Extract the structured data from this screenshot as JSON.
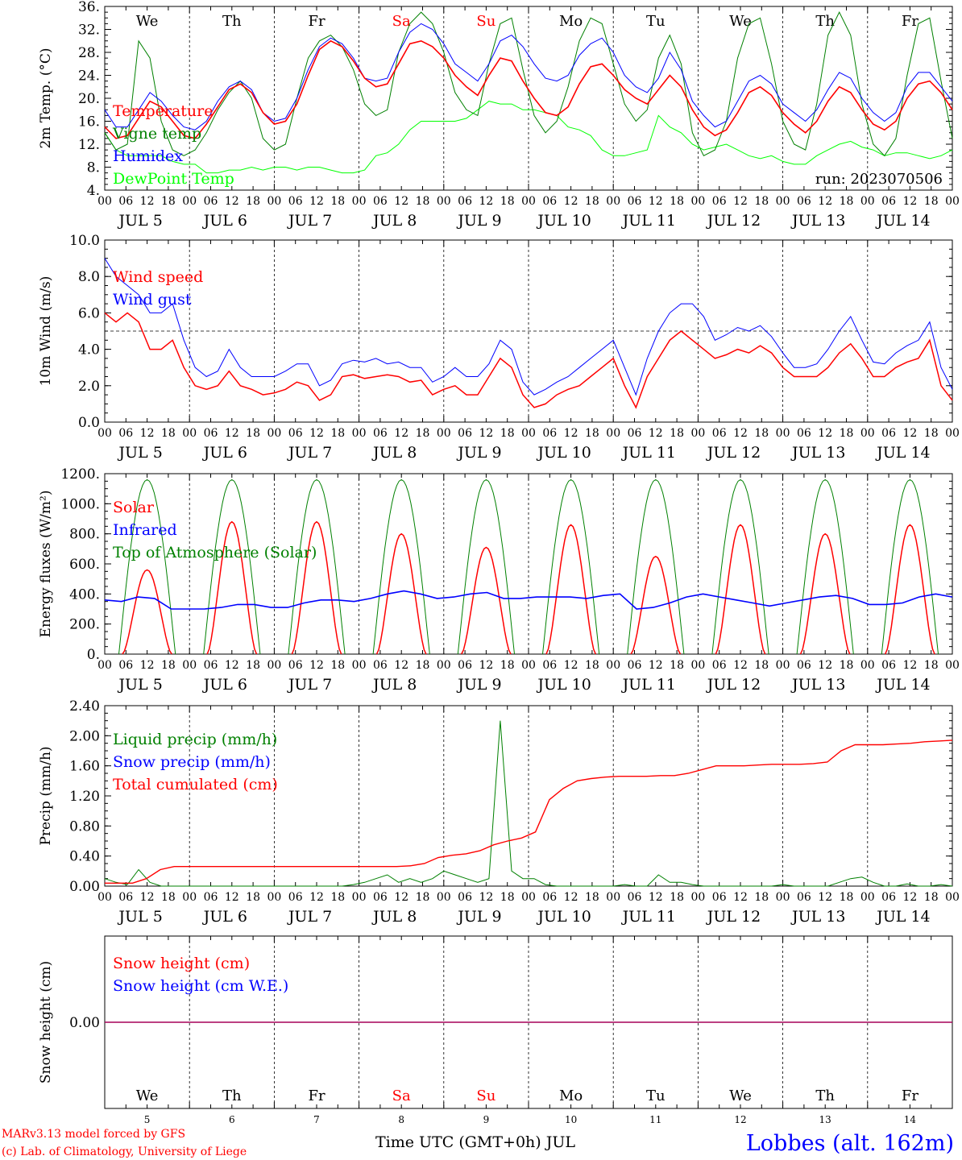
{
  "chart_data": [
    {
      "type": "line",
      "ylabel": "2m Temp. (°C)",
      "ylim": [
        4,
        36
      ],
      "yticks": [
        "4.",
        "8.",
        "12.",
        "16.",
        "20.",
        "24.",
        "28.",
        "32.",
        "36."
      ],
      "legend_placement": "left",
      "run_label": "run: 2023070506",
      "series": [
        {
          "name": "Temperature",
          "color": "#ff0000",
          "values": [
            15,
            13,
            13.5,
            16.5,
            19.5,
            18.5,
            16,
            13.5,
            13,
            15.5,
            18.5,
            21.5,
            22.5,
            21,
            17.5,
            15.5,
            16,
            19,
            24,
            28.5,
            30,
            29,
            26.5,
            23.5,
            22,
            22.5,
            26,
            29.5,
            30,
            29,
            27,
            24,
            22,
            20.5,
            24,
            27,
            26.5,
            23,
            20,
            17.5,
            17,
            18.5,
            22.5,
            25.5,
            26,
            24,
            21.5,
            20,
            19,
            21.5,
            24,
            22,
            18,
            15,
            13.5,
            14.5,
            17.5,
            21,
            22,
            20.5,
            17.5,
            15.5,
            14,
            16,
            19.5,
            22,
            21,
            18,
            15.5,
            14.5,
            16,
            20,
            22.5,
            23,
            21,
            18
          ]
        },
        {
          "name": "Vigne temp",
          "color": "#008000",
          "values": [
            14,
            11,
            12,
            30,
            27,
            16,
            11,
            10,
            11,
            14,
            18,
            21,
            23,
            20,
            13,
            11,
            12,
            20,
            27,
            30,
            31,
            29,
            25,
            19,
            17,
            18,
            28,
            33,
            35,
            33,
            28,
            21,
            18,
            17,
            26,
            33,
            34,
            25,
            17,
            14,
            16,
            22,
            30,
            34,
            33,
            26,
            19,
            16,
            18,
            27,
            31,
            26,
            14,
            10,
            11,
            16,
            27,
            33,
            34,
            26,
            16,
            12,
            11,
            19,
            31,
            35,
            31,
            19,
            12,
            10,
            13,
            24,
            33,
            34,
            23,
            13
          ]
        },
        {
          "name": "Humidex",
          "color": "#0000ff",
          "values": [
            18,
            15,
            15,
            18,
            21,
            19.5,
            17,
            15,
            14.5,
            16,
            19.5,
            22,
            23,
            21.5,
            17.5,
            16,
            16.5,
            20,
            25,
            29,
            30.5,
            29.5,
            27,
            23.5,
            23,
            23.5,
            28,
            31.5,
            33,
            32,
            29.5,
            26,
            24.5,
            23,
            26,
            30,
            31,
            29,
            26,
            23.5,
            23,
            24,
            27.5,
            29.5,
            30.5,
            28,
            24,
            22,
            21,
            23.5,
            28,
            25,
            19.5,
            17,
            15,
            16,
            19.5,
            23,
            24,
            22.5,
            19,
            17.5,
            16,
            18,
            21.5,
            24.5,
            23.5,
            20,
            17.5,
            16,
            17.5,
            22,
            24.5,
            24.5,
            22,
            19.5
          ]
        },
        {
          "name": "DewPoint Temp",
          "color": "#00ff00",
          "values": [
            14,
            11,
            10,
            10,
            10,
            10,
            9,
            8.5,
            8.5,
            7,
            7,
            7.5,
            7.5,
            8,
            7.5,
            8,
            8,
            7.5,
            8,
            8,
            7.5,
            7,
            7,
            7.5,
            10,
            10.5,
            12,
            14.5,
            16,
            16,
            16,
            16,
            16.5,
            18,
            19.5,
            19,
            19,
            18,
            18,
            17.5,
            17,
            15,
            14.5,
            13.5,
            11,
            10,
            10,
            10.5,
            11,
            17,
            15,
            14,
            12,
            11,
            11.5,
            12,
            11,
            10,
            9.5,
            10,
            9,
            8.5,
            8.5,
            10,
            11,
            12,
            12.5,
            11.5,
            11,
            10,
            10.5,
            10.5,
            10,
            9.5,
            10,
            11
          ]
        }
      ]
    },
    {
      "type": "line",
      "ylabel": "10m Wind (m/s)",
      "ylim": [
        0,
        10
      ],
      "yticks": [
        "0.0",
        "2.0",
        "4.0",
        "6.0",
        "8.0",
        "10.0"
      ],
      "reference_line": 5,
      "legend_placement": "top-left",
      "series": [
        {
          "name": "Wind speed",
          "color": "#ff0000",
          "values": [
            6,
            5.5,
            6,
            5.5,
            4,
            4,
            4.5,
            3,
            2,
            1.8,
            2,
            2.8,
            2,
            1.8,
            1.5,
            1.6,
            1.8,
            2.2,
            2,
            1.2,
            1.5,
            2.5,
            2.6,
            2.4,
            2.5,
            2.6,
            2.5,
            2.2,
            2.3,
            1.5,
            1.8,
            2,
            1.5,
            1.5,
            2.5,
            3.5,
            3,
            1.5,
            0.8,
            1,
            1.5,
            1.8,
            2,
            2.5,
            3,
            3.5,
            2,
            0.8,
            2.5,
            3.5,
            4.5,
            5,
            4.5,
            4,
            3.5,
            3.7,
            4,
            3.8,
            4.2,
            3.8,
            3,
            2.5,
            2.5,
            2.5,
            3,
            3.8,
            4.3,
            3.5,
            2.5,
            2.5,
            3,
            3.3,
            3.5,
            4.5,
            2,
            1.2
          ]
        },
        {
          "name": "Wind gust",
          "color": "#0000ff",
          "values": [
            9,
            8,
            7.5,
            7,
            6,
            6,
            6.5,
            4.5,
            3,
            2.5,
            2.8,
            4,
            3,
            2.5,
            2.5,
            2.5,
            2.8,
            3.2,
            3.2,
            2,
            2.3,
            3.2,
            3.4,
            3.3,
            3.5,
            3.2,
            3.3,
            3,
            3,
            2.2,
            2.5,
            3,
            2.5,
            2.5,
            3.2,
            4.5,
            4,
            2.2,
            1.5,
            1.8,
            2.2,
            2.5,
            3,
            3.5,
            4,
            4.5,
            3,
            1.5,
            3.5,
            5,
            6,
            6.5,
            6.5,
            5.8,
            4.5,
            4.8,
            5.2,
            5,
            5.3,
            4.7,
            3.8,
            3,
            3,
            3.2,
            4,
            5,
            5.8,
            4.5,
            3.3,
            3.2,
            3.8,
            4.2,
            4.5,
            5.5,
            3,
            1.8
          ]
        }
      ]
    },
    {
      "type": "line",
      "ylabel": "Energy fluxes (W/m²)",
      "ylim": [
        0,
        1200
      ],
      "yticks": [
        "0.",
        "200.",
        "400.",
        "600.",
        "800.",
        "1000.",
        "1200."
      ],
      "legend_placement": "top-left",
      "series": [
        {
          "name": "Solar",
          "color": "#ff0000",
          "day_peaks": [
            560,
            880,
            880,
            800,
            710,
            860,
            650,
            860,
            800,
            860
          ]
        },
        {
          "name": "Infrared",
          "color": "#0000ff",
          "values": [
            360,
            350,
            380,
            370,
            300,
            300,
            300,
            310,
            330,
            330,
            310,
            310,
            340,
            360,
            360,
            350,
            370,
            400,
            420,
            400,
            370,
            380,
            400,
            410,
            370,
            370,
            380,
            380,
            380,
            370,
            390,
            400,
            300,
            310,
            340,
            380,
            400,
            380,
            360,
            340,
            320,
            340,
            360,
            380,
            390,
            370,
            330,
            330,
            340,
            380,
            400,
            380
          ]
        },
        {
          "name": "Top of Atmosphere (Solar)",
          "color": "#008000",
          "peak": 1160
        }
      ]
    },
    {
      "type": "line",
      "ylabel": "Precip (mm/h)",
      "ylim": [
        0,
        2.4
      ],
      "yticks": [
        "0.00",
        "0.40",
        "0.80",
        "1.20",
        "1.60",
        "2.00",
        "2.40"
      ],
      "legend_placement": "top-left",
      "series": [
        {
          "name": "Liquid precip (mm/h)",
          "color": "#008000",
          "values": [
            0.1,
            0.05,
            0.02,
            0.22,
            0.05,
            0,
            0,
            0,
            0,
            0,
            0,
            0,
            0,
            0,
            0,
            0,
            0,
            0,
            0,
            0,
            0,
            0,
            0.02,
            0.05,
            0.1,
            0.15,
            0.05,
            0.1,
            0.05,
            0.1,
            0.2,
            0.15,
            0.1,
            0.05,
            0.1,
            2.2,
            0.2,
            0.1,
            0.1,
            0.02,
            0,
            0,
            0,
            0,
            0,
            0,
            0.02,
            0,
            0,
            0.15,
            0.05,
            0.05,
            0.02,
            0,
            0,
            0,
            0,
            0,
            0,
            0,
            0.02,
            0,
            0,
            0,
            0,
            0.05,
            0.1,
            0.12,
            0.05,
            0,
            0,
            0.03,
            0,
            0,
            0.02,
            0
          ]
        },
        {
          "name": "Snow precip (mm/h)",
          "color": "#0000ff",
          "values": []
        },
        {
          "name": "Total cumulated (cm)",
          "color": "#ff0000",
          "values": [
            0.04,
            0.04,
            0.04,
            0.1,
            0.22,
            0.26,
            0.26,
            0.26,
            0.26,
            0.26,
            0.26,
            0.26,
            0.26,
            0.26,
            0.26,
            0.26,
            0.26,
            0.26,
            0.26,
            0.26,
            0.26,
            0.26,
            0.27,
            0.3,
            0.38,
            0.41,
            0.43,
            0.47,
            0.55,
            0.6,
            0.64,
            0.72,
            1.15,
            1.3,
            1.4,
            1.43,
            1.45,
            1.46,
            1.46,
            1.46,
            1.47,
            1.47,
            1.5,
            1.55,
            1.6,
            1.6,
            1.6,
            1.61,
            1.62,
            1.62,
            1.62,
            1.63,
            1.65,
            1.8,
            1.88,
            1.88,
            1.88,
            1.89,
            1.9,
            1.92,
            1.93,
            1.94
          ]
        }
      ]
    },
    {
      "type": "line",
      "ylabel": "Snow height (cm)",
      "yticks": [
        "0.00"
      ],
      "legend_placement": "top-left",
      "series": [
        {
          "name": "Snow height (cm)",
          "color": "#ff0000",
          "values": [
            0,
            0
          ]
        },
        {
          "name": "Snow height (cm W.E.)",
          "color": "#0000ff",
          "values": [
            0,
            0
          ]
        }
      ]
    }
  ],
  "weekdays": [
    "We",
    "Th",
    "Fr",
    "Sa",
    "Su",
    "Mo",
    "Tu",
    "We",
    "Th",
    "Fr"
  ],
  "weekend_color": "#ff0000",
  "hour_ticks": [
    "00",
    "06",
    "12",
    "18"
  ],
  "final_hour_tick": "00",
  "date_labels": [
    "JUL  5",
    "JUL  6",
    "JUL  7",
    "JUL  8",
    "JUL  9",
    "JUL 10",
    "JUL 11",
    "JUL 12",
    "JUL 13",
    "JUL 14"
  ],
  "day_numbers": [
    "5",
    "6",
    "7",
    "8",
    "9",
    "10",
    "11",
    "12",
    "13",
    "14"
  ],
  "xlabel": "Time UTC (GMT+0h) JUL",
  "footer": {
    "model_line": "MARv3.13 model forced by GFS",
    "credit_line": "(c) Lab. of Climatology, University of Liege",
    "location": "Lobbes (alt. 162m)"
  }
}
